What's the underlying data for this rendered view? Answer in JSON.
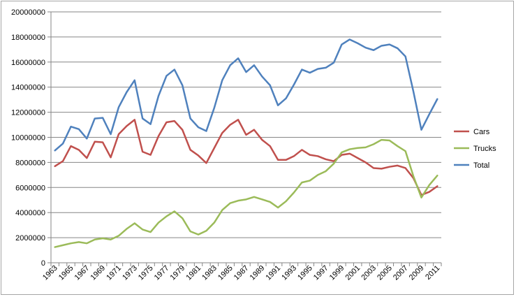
{
  "chart_data": {
    "type": "line",
    "title": "",
    "xlabel": "",
    "ylabel": "",
    "ylim": [
      0,
      20000000
    ],
    "yticks": [
      0,
      2000000,
      4000000,
      6000000,
      8000000,
      10000000,
      12000000,
      14000000,
      16000000,
      18000000,
      20000000
    ],
    "ytick_labels": [
      "0",
      "2000000",
      "4000000",
      "6000000",
      "8000000",
      "10000000",
      "12000000",
      "14000000",
      "16000000",
      "18000000",
      "20000000"
    ],
    "x": [
      1963,
      1964,
      1965,
      1966,
      1967,
      1968,
      1969,
      1970,
      1971,
      1972,
      1973,
      1974,
      1975,
      1976,
      1977,
      1978,
      1979,
      1980,
      1981,
      1982,
      1983,
      1984,
      1985,
      1986,
      1987,
      1988,
      1989,
      1990,
      1991,
      1992,
      1993,
      1994,
      1995,
      1996,
      1997,
      1998,
      1999,
      2000,
      2001,
      2002,
      2003,
      2004,
      2005,
      2006,
      2007,
      2008,
      2009,
      2010,
      2011
    ],
    "xtick_labels": [
      "1963",
      "1965",
      "1967",
      "1969",
      "1971",
      "1973",
      "1975",
      "1977",
      "1979",
      "1981",
      "1983",
      "1985",
      "1987",
      "1989",
      "1991",
      "1993",
      "1995",
      "1997",
      "1999",
      "2001",
      "2003",
      "2005",
      "2007",
      "2009",
      "2011"
    ],
    "grid": "horizontal",
    "legend_position": "right",
    "series": [
      {
        "name": "Cars",
        "color": "#c0504d",
        "values": [
          7700000,
          8100000,
          9300000,
          9000000,
          8350000,
          9650000,
          9600000,
          8400000,
          10250000,
          10900000,
          11400000,
          8850000,
          8600000,
          10100000,
          11200000,
          11300000,
          10600000,
          9000000,
          8550000,
          7950000,
          9150000,
          10350000,
          11000000,
          11400000,
          10200000,
          10600000,
          9800000,
          9300000,
          8200000,
          8200000,
          8500000,
          9000000,
          8600000,
          8500000,
          8250000,
          8100000,
          8600000,
          8700000,
          8350000,
          8000000,
          7550000,
          7500000,
          7650000,
          7750000,
          7550000,
          6750000,
          5400000,
          5650000,
          6100000
        ]
      },
      {
        "name": "Trucks",
        "color": "#9bbb59",
        "values": [
          1250000,
          1400000,
          1550000,
          1650000,
          1550000,
          1850000,
          1950000,
          1850000,
          2150000,
          2700000,
          3150000,
          2650000,
          2450000,
          3200000,
          3700000,
          4100000,
          3550000,
          2500000,
          2250000,
          2550000,
          3200000,
          4200000,
          4750000,
          4950000,
          5050000,
          5250000,
          5050000,
          4850000,
          4400000,
          4900000,
          5600000,
          6400000,
          6550000,
          7000000,
          7300000,
          7900000,
          8800000,
          9050000,
          9150000,
          9200000,
          9450000,
          9800000,
          9750000,
          9300000,
          8900000,
          6900000,
          5200000,
          6200000,
          6950000
        ]
      },
      {
        "name": "Total",
        "color": "#4f81bd",
        "values": [
          8950000,
          9500000,
          10850000,
          10650000,
          9900000,
          11500000,
          11550000,
          10250000,
          12400000,
          13600000,
          14550000,
          11500000,
          11050000,
          13300000,
          14900000,
          15400000,
          14150000,
          11500000,
          10800000,
          10500000,
          12350000,
          14550000,
          15750000,
          16300000,
          15200000,
          15750000,
          14850000,
          14150000,
          12550000,
          13100000,
          14200000,
          15400000,
          15150000,
          15450000,
          15550000,
          15950000,
          17400000,
          17800000,
          17500000,
          17150000,
          16950000,
          17300000,
          17400000,
          17100000,
          16450000,
          13650000,
          10600000,
          11850000,
          13050000
        ]
      }
    ]
  }
}
